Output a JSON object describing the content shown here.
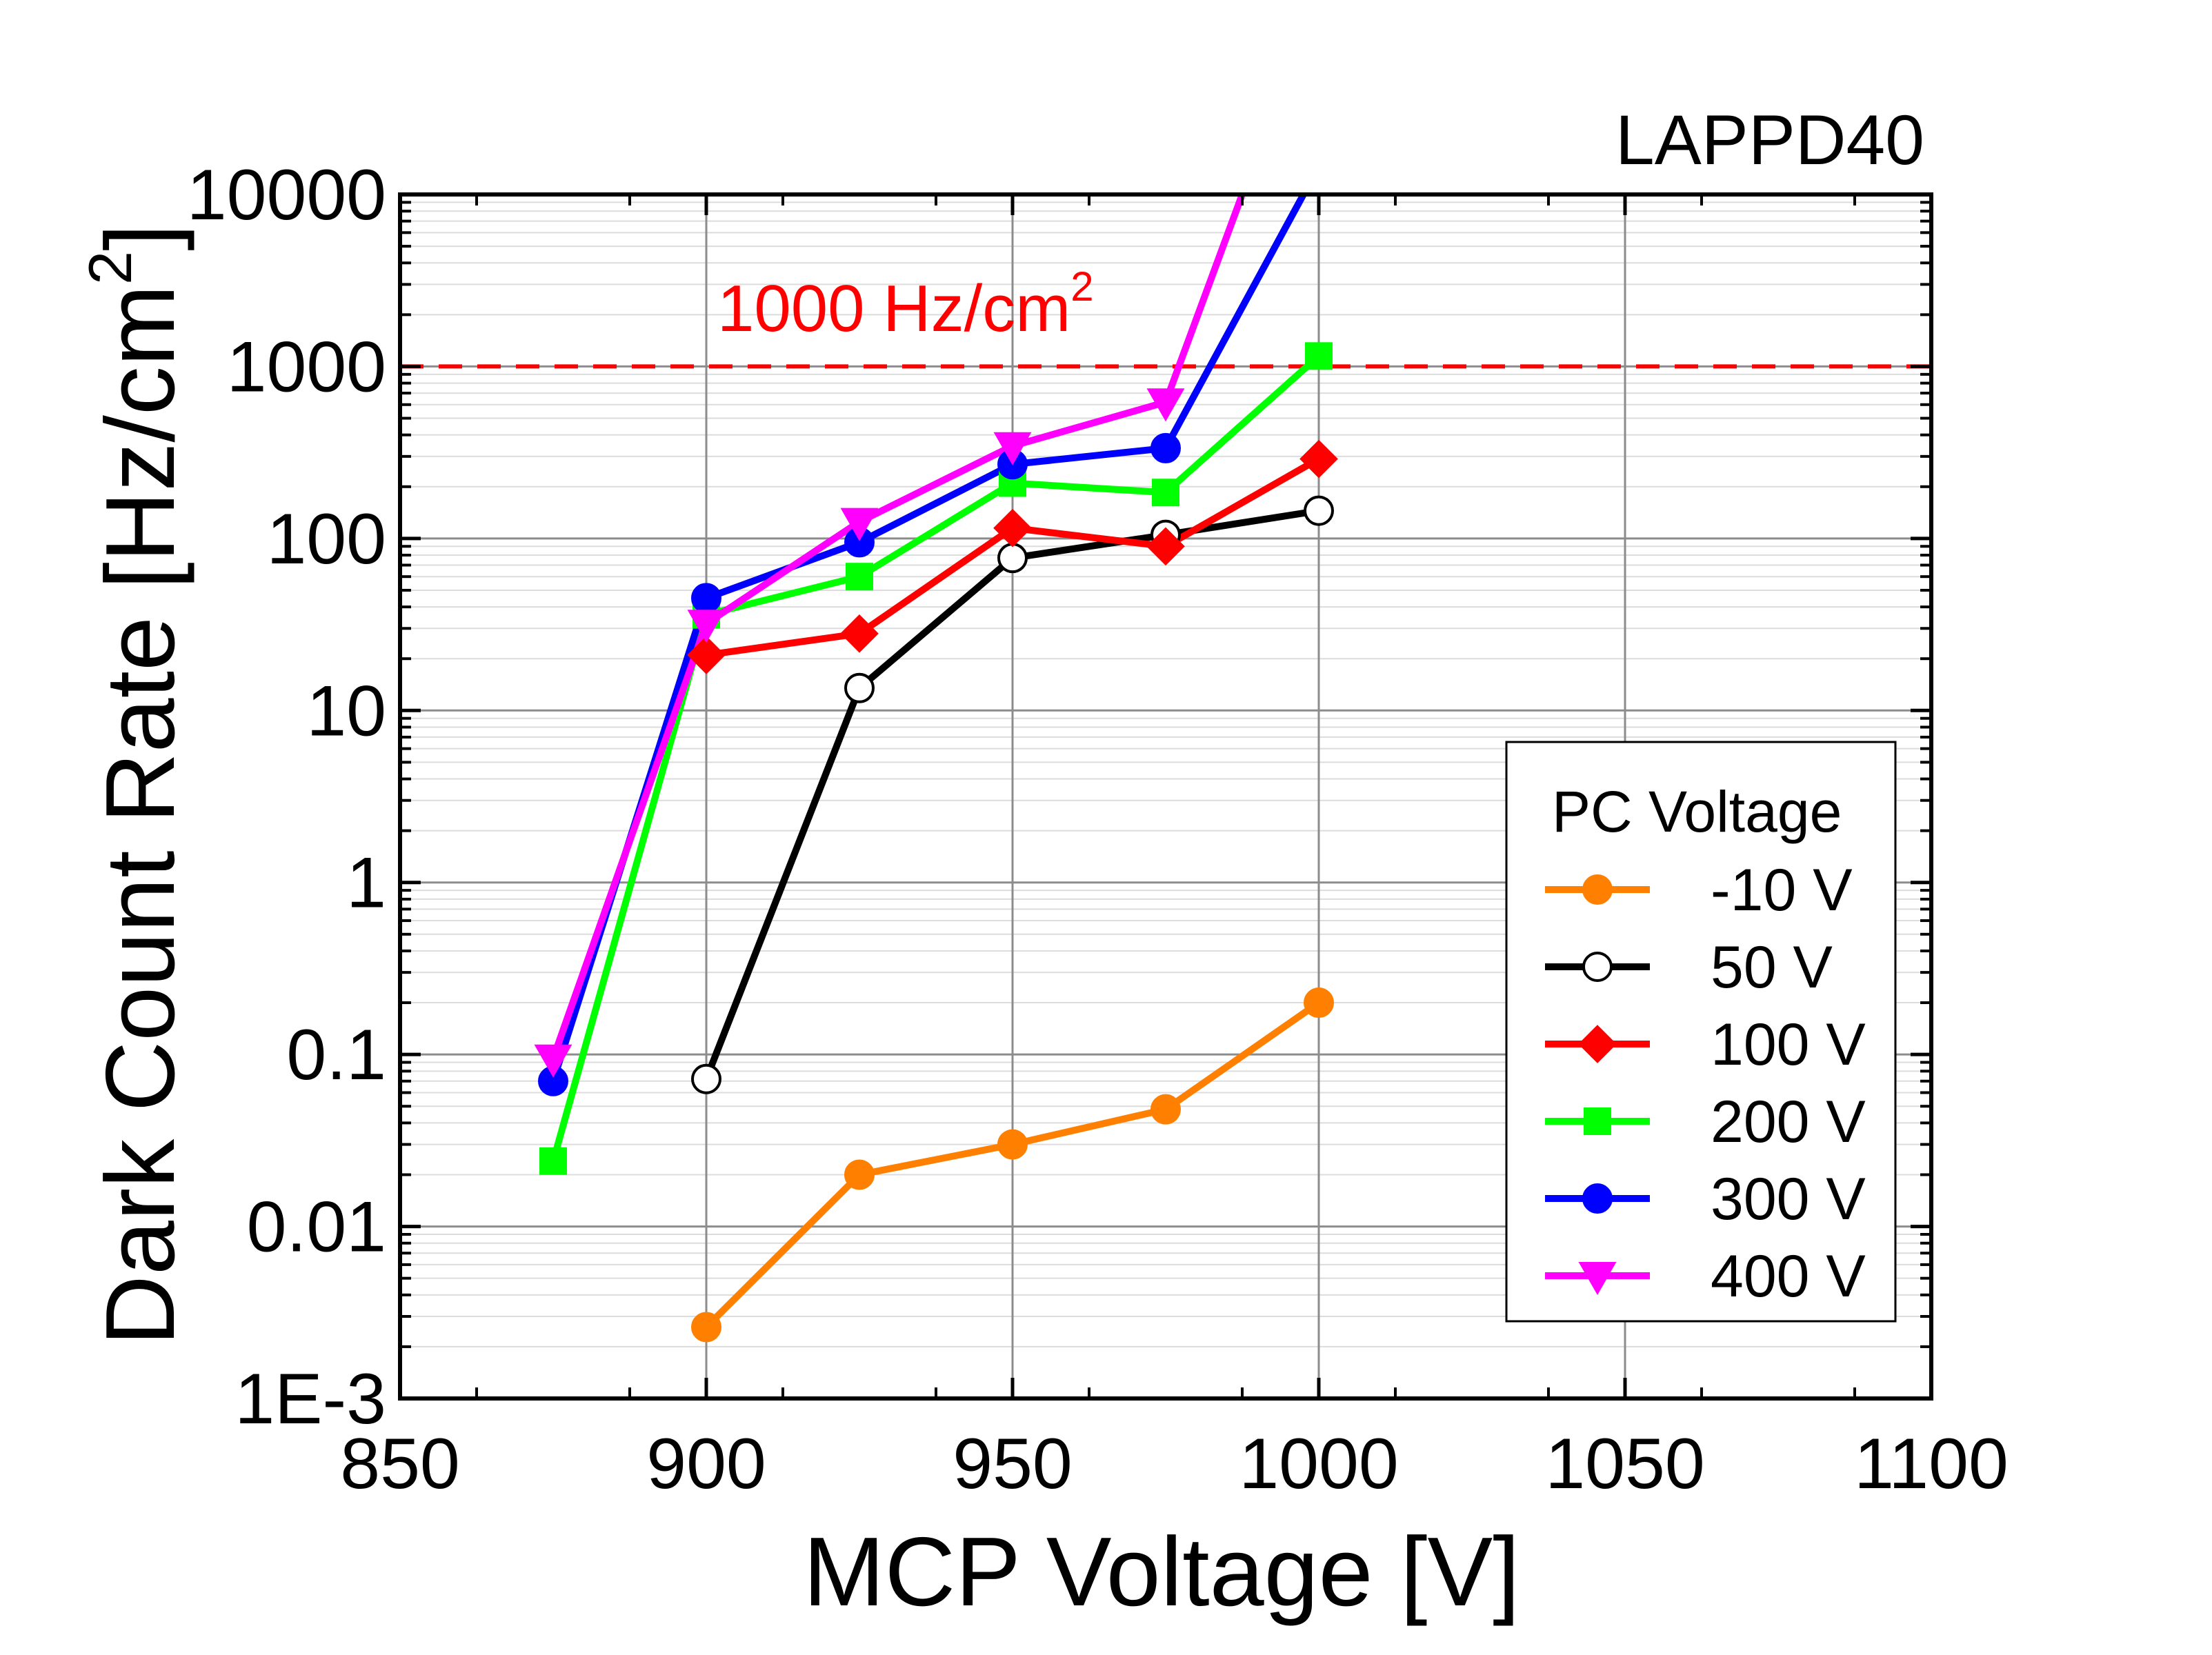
{
  "chart_data": {
    "type": "line",
    "title": "LAPPD40",
    "xlabel": "MCP Voltage [V]",
    "ylabel_main": "Dark Count Rate [Hz/cm",
    "ylabel_sup": "2",
    "ylabel_end": "]",
    "xlim": [
      850,
      1100
    ],
    "xticks": [
      850,
      900,
      950,
      1000,
      1050,
      1100
    ],
    "x_tick_labels": [
      "850",
      "900",
      "950",
      "1000",
      "1050",
      "1100"
    ],
    "yscale": "log",
    "ylim": [
      0.001,
      10000
    ],
    "yticks": [
      0.001,
      0.01,
      0.1,
      1,
      10,
      100,
      1000,
      10000
    ],
    "y_tick_labels": [
      "1E-3",
      "0.01",
      "0.1",
      "1",
      "10",
      "100",
      "1000",
      "10000"
    ],
    "grid": true,
    "reference_line": {
      "y": 1000,
      "label_main": "1000 Hz/cm",
      "label_sup": "2",
      "color": "#ff0000",
      "style": "dashed"
    },
    "legend": {
      "title": "PC Voltage",
      "position": "bottom-right"
    },
    "series": [
      {
        "name": "-10 V",
        "color": "#ff8000",
        "marker": "circle",
        "filled": true,
        "x": [
          900,
          925,
          950,
          975,
          1000
        ],
        "y": [
          0.0026,
          0.02,
          0.03,
          0.048,
          0.2
        ]
      },
      {
        "name": "50 V",
        "color": "#000000",
        "marker": "circle",
        "filled": false,
        "x": [
          900,
          925,
          950,
          975,
          1000
        ],
        "y": [
          0.072,
          13.5,
          77,
          105,
          145
        ]
      },
      {
        "name": "100 V",
        "color": "#ff0000",
        "marker": "diamond",
        "filled": true,
        "x": [
          900,
          925,
          950,
          975,
          1000
        ],
        "y": [
          21,
          28,
          115,
          90,
          290
        ]
      },
      {
        "name": "200 V",
        "color": "#00ff00",
        "marker": "square",
        "filled": true,
        "x": [
          875,
          900,
          925,
          950,
          975,
          1000
        ],
        "y": [
          0.024,
          36,
          60,
          210,
          185,
          1150
        ]
      },
      {
        "name": "300 V",
        "color": "#0000ff",
        "marker": "circle",
        "filled": true,
        "x": [
          875,
          900,
          925,
          950,
          975,
          997.5
        ],
        "y": [
          0.07,
          45,
          95,
          270,
          335,
          10000
        ]
      },
      {
        "name": "400 V",
        "color": "#ff00ff",
        "marker": "triangle-down",
        "filled": true,
        "x": [
          875,
          900,
          925,
          950,
          975,
          987.5
        ],
        "y": [
          0.095,
          32,
          125,
          345,
          620,
          10000
        ]
      }
    ]
  }
}
